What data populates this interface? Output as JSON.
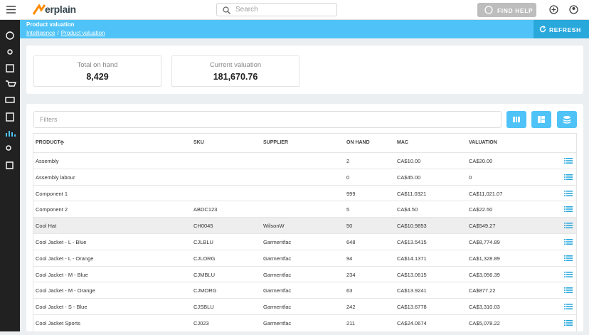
{
  "topbar": {
    "logo": "erplain",
    "search_placeholder": "Search",
    "help_button": "FIND HELP"
  },
  "header": {
    "title": "Product valuation",
    "breadcrumbs": [
      "Intelligence",
      "Product valuation"
    ],
    "separator": "/",
    "refresh_button": "REFRESH"
  },
  "summary": [
    {
      "label": "Total on hand",
      "value": "8,429"
    },
    {
      "label": "Current valuation",
      "value": "181,670.76"
    }
  ],
  "filters_placeholder": "Filters",
  "table": {
    "columns": [
      "PRODUCT",
      "SKU",
      "SUPPLIER",
      "ON HAND",
      "MAC",
      "VALUATION"
    ],
    "rows": [
      [
        "Assembly",
        "",
        "",
        "2",
        "CA$10.00",
        "CA$20.00"
      ],
      [
        "Assembly labour",
        "",
        "",
        "0",
        "CA$45.00",
        "0"
      ],
      [
        "Component 1",
        "",
        "",
        "999",
        "CA$11.0321",
        "CA$11,021.07"
      ],
      [
        "Component 2",
        "ABDC123",
        "",
        "5",
        "CA$4.50",
        "CA$22.50"
      ],
      [
        "Cool Hat",
        "CH0045",
        "WilsonW",
        "50",
        "CA$10.9853",
        "CA$549.27"
      ],
      [
        "Cool Jacket - L - Blue",
        "CJLBLU",
        "Garmentfac",
        "648",
        "CA$13.5415",
        "CA$8,774.89"
      ],
      [
        "Cool Jacket - L - Orange",
        "CJLORG",
        "Garmentfac",
        "94",
        "CA$14.1371",
        "CA$1,328.89"
      ],
      [
        "Cool Jacket - M - Blue",
        "CJMBLU",
        "Garmentfac",
        "234",
        "CA$13.0615",
        "CA$3,056.39"
      ],
      [
        "Cool Jacket - M - Orange",
        "CJMORG",
        "Garmentfac",
        "63",
        "CA$13.9241",
        "CA$877.22"
      ],
      [
        "Cool Jacket - S - Blue",
        "CJSBLU",
        "Garmentfac",
        "242",
        "CA$13.6778",
        "CA$3,310.03"
      ],
      [
        "Cool Jacket Sports",
        "CJ023",
        "Garmentfac",
        "211",
        "CA$24.0674",
        "CA$5,078.22"
      ]
    ]
  }
}
